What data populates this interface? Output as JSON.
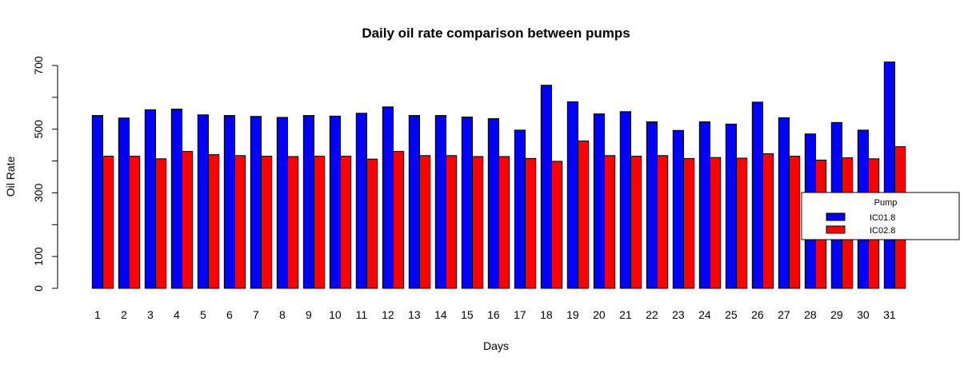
{
  "chart_data": {
    "type": "bar",
    "title": "Daily oil rate comparison between pumps",
    "xlabel": "Days",
    "ylabel": "Oil Rate",
    "categories": [
      "1",
      "2",
      "3",
      "4",
      "5",
      "6",
      "7",
      "8",
      "9",
      "10",
      "11",
      "12",
      "13",
      "14",
      "15",
      "16",
      "17",
      "18",
      "19",
      "20",
      "21",
      "22",
      "23",
      "24",
      "25",
      "26",
      "27",
      "28",
      "29",
      "30",
      "31"
    ],
    "yticks": [
      "0",
      "100",
      "300",
      "500",
      "700"
    ],
    "ylim": [
      0,
      700
    ],
    "grid": false,
    "legend": {
      "title": "Pump",
      "position": "right"
    },
    "series": [
      {
        "name": "IC01.8",
        "color": "#0000ff",
        "values": [
          543,
          535,
          561,
          563,
          545,
          543,
          540,
          537,
          543,
          541,
          550,
          570,
          543,
          543,
          538,
          533,
          497,
          638,
          586,
          548,
          555,
          523,
          496,
          523,
          516,
          585,
          536,
          485,
          521,
          497,
          711
        ]
      },
      {
        "name": "IC02.8",
        "color": "#ff0000",
        "values": [
          415,
          415,
          407,
          430,
          420,
          417,
          415,
          414,
          415,
          415,
          406,
          430,
          417,
          417,
          414,
          414,
          408,
          399,
          463,
          417,
          415,
          417,
          408,
          411,
          409,
          423,
          415,
          403,
          410,
          407,
          445
        ]
      }
    ]
  }
}
